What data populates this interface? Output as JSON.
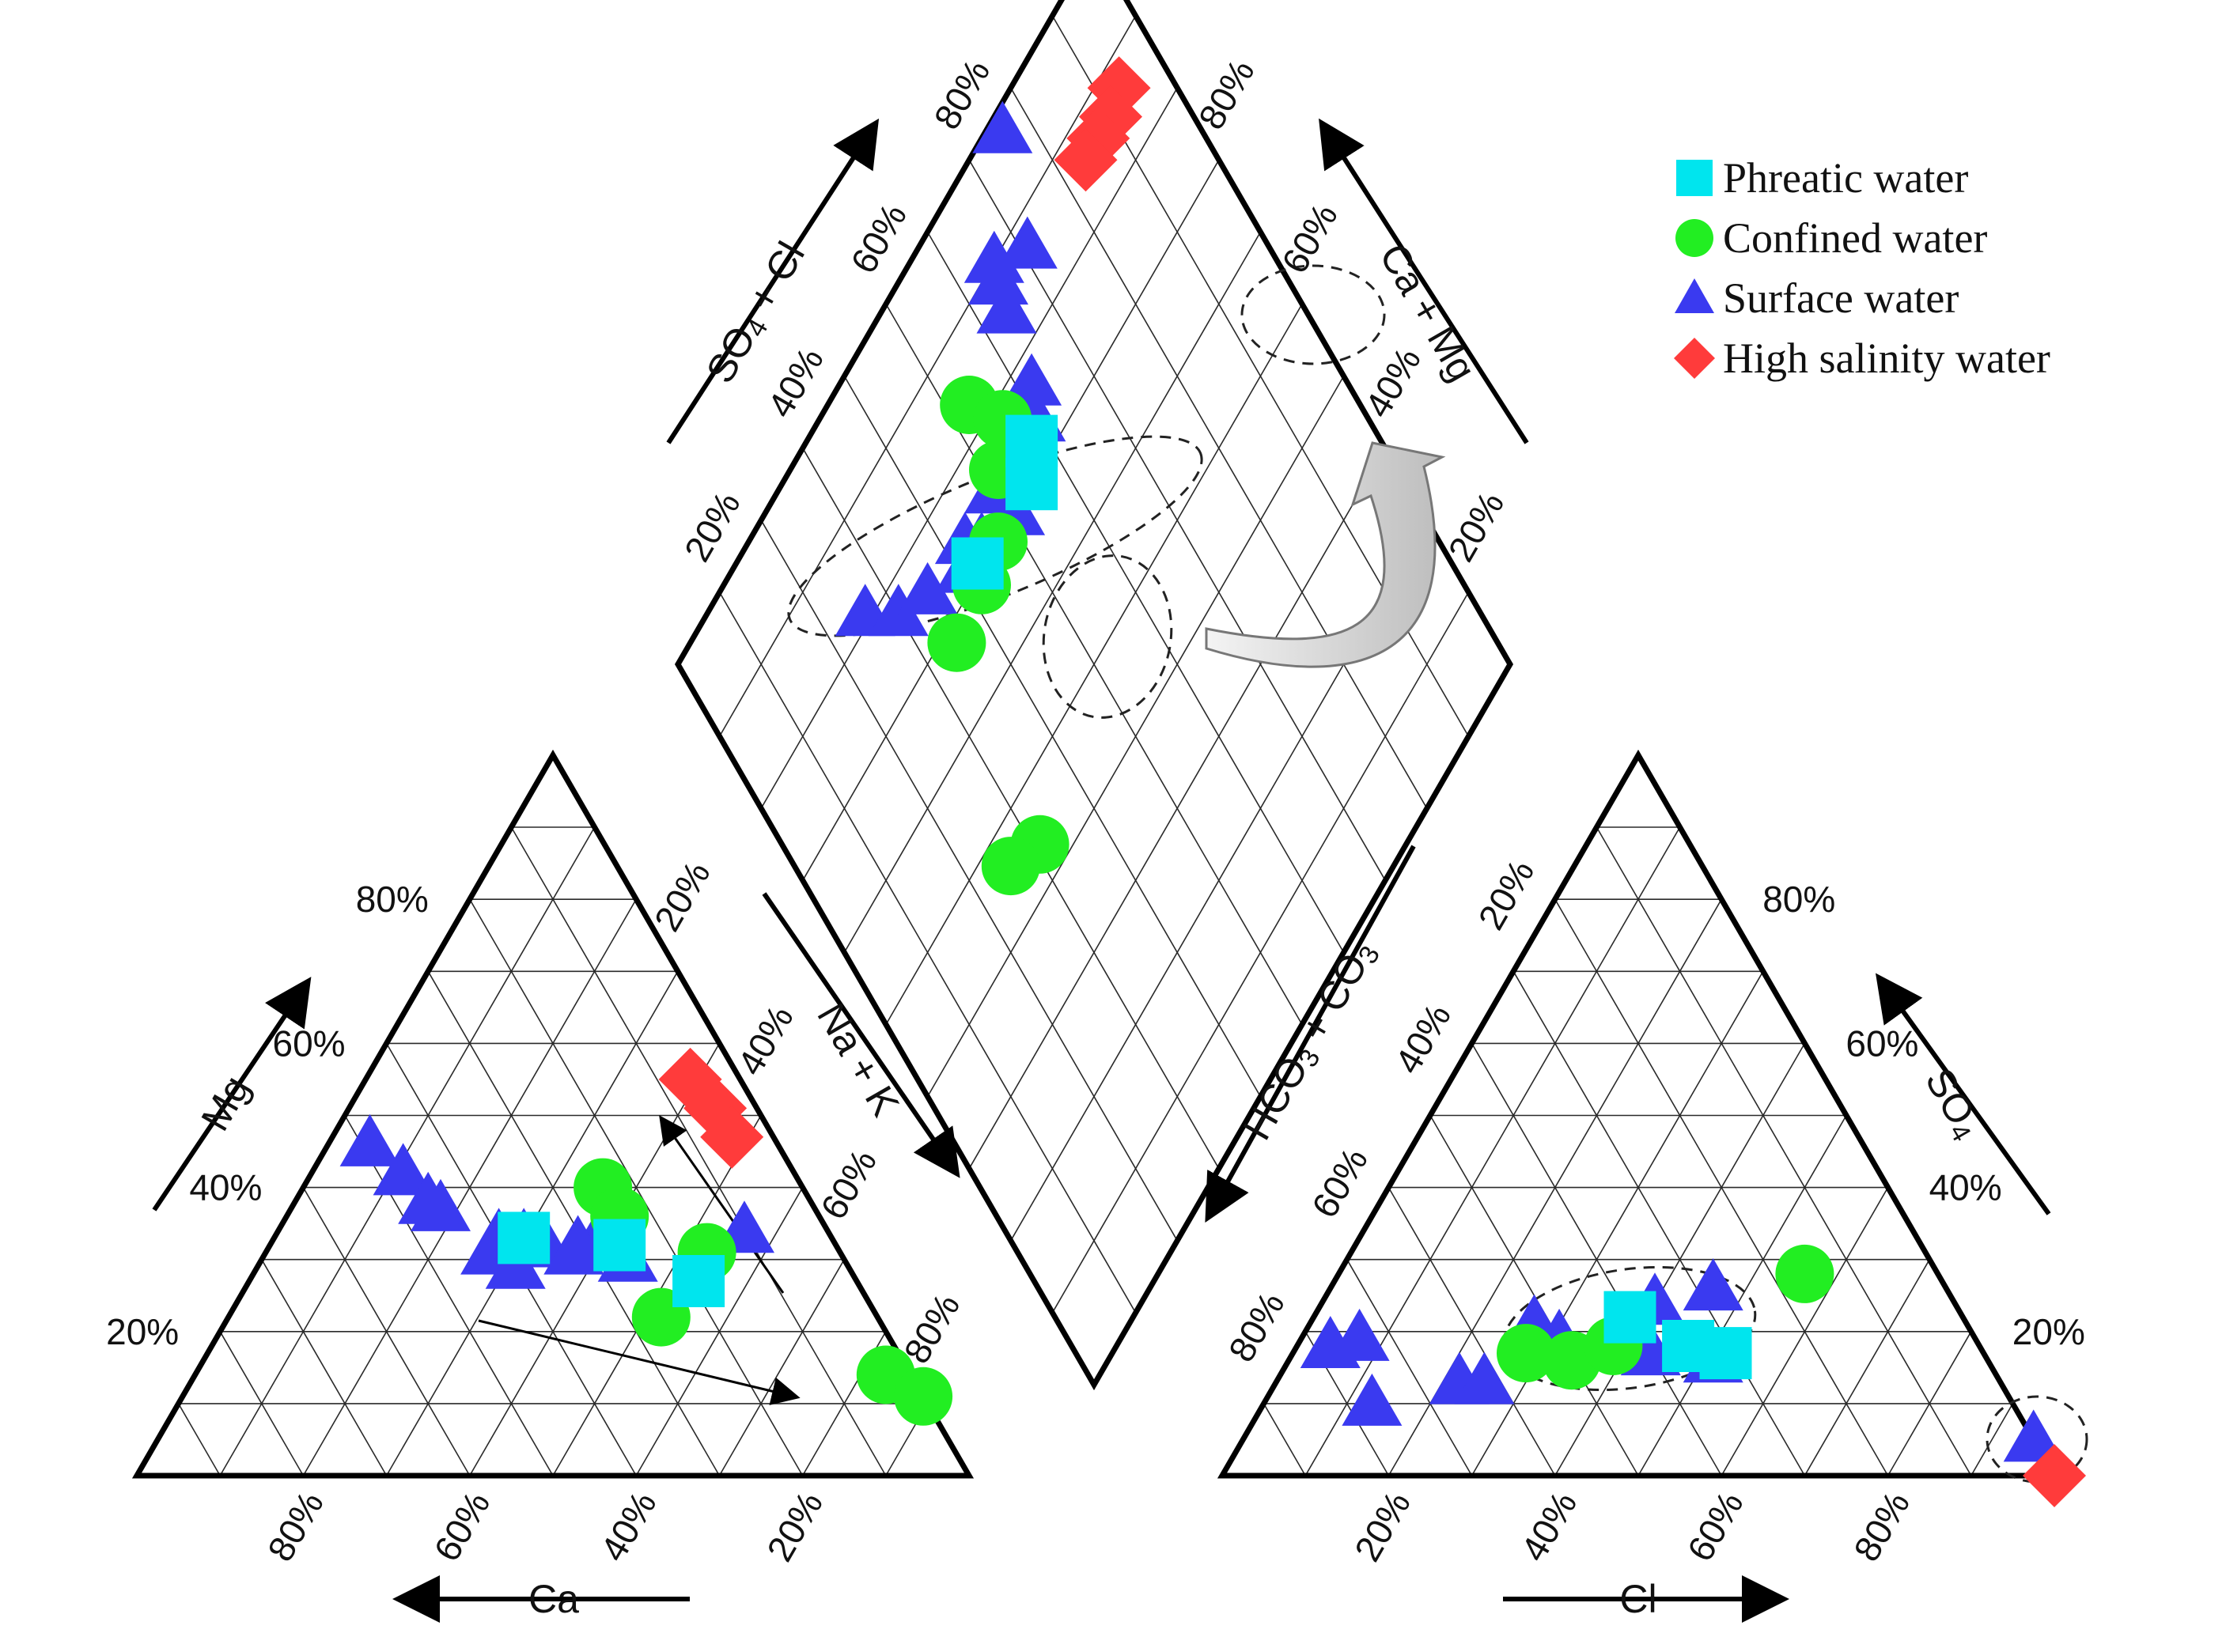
{
  "chart_data": {
    "type": "scatter",
    "subtype": "piper-trilinear",
    "title": "",
    "colors": {
      "phreatic": "#00e5ee",
      "confined": "#22ee22",
      "surface": "#3a3af0",
      "high_salinity": "#ff3b3b"
    },
    "legend": {
      "placement": "top-right",
      "entries": [
        {
          "key": "phreatic",
          "label": "Phreatic water",
          "marker": "square"
        },
        {
          "key": "confined",
          "label": "Confined water",
          "marker": "circle"
        },
        {
          "key": "surface",
          "label": "Surface water",
          "marker": "triangle"
        },
        {
          "key": "high_salinity",
          "label": "High salinity water",
          "marker": "diamond"
        }
      ]
    },
    "tick_labels": [
      "20%",
      "40%",
      "60%",
      "80%"
    ],
    "axes": {
      "ca": {
        "label": "Ca"
      },
      "mg": {
        "label": "Mg"
      },
      "cl": {
        "label": "Cl"
      },
      "so4": {
        "label": "SO",
        "sub": "4"
      },
      "nak": {
        "label": "Na + K"
      },
      "hco3co3": {
        "parts": [
          "HCO",
          "3",
          " + CO",
          "3"
        ]
      },
      "so4cl": {
        "parts": [
          "SO",
          "4",
          " + Cl"
        ]
      },
      "camg": {
        "label": "Ca + Mg"
      }
    },
    "cation_triangle": {
      "coords": "Ca %, Mg %, Na+K %",
      "series": [
        {
          "key": "surface",
          "points": [
            [
              49,
              46,
              5
            ],
            [
              47,
              42,
              11
            ],
            [
              46,
              38,
              16
            ],
            [
              45,
              37,
              18
            ],
            [
              27,
              34,
              39
            ],
            [
              42,
              31,
              27
            ],
            [
              40,
              29,
              31
            ],
            [
              40,
              33,
              27
            ],
            [
              37,
              33,
              30
            ],
            [
              35,
              32,
              33
            ],
            [
              32,
              31,
              37
            ],
            [
              31,
              32,
              37
            ],
            [
              26,
              30,
              44
            ],
            [
              10,
              34,
              56
            ]
          ]
        },
        {
          "key": "confined",
          "points": [
            [
              24,
              40,
              36
            ],
            [
              24,
              36,
              40
            ],
            [
              16,
              31,
              53
            ],
            [
              26,
              22,
              52
            ],
            [
              3,
              14,
              83
            ],
            [
              0,
              11,
              89
            ]
          ]
        },
        {
          "key": "phreatic",
          "points": [
            [
              37,
              33,
              30
            ],
            [
              26,
              32,
              42
            ],
            [
              19,
              27,
              54
            ]
          ]
        },
        {
          "key": "high_salinity",
          "points": [
            [
              6,
              55,
              39
            ],
            [
              5,
              51,
              44
            ],
            [
              5,
              47,
              48
            ]
          ]
        }
      ]
    },
    "anion_triangle": {
      "coords": "HCO3+CO3 %, SO4 %, Cl %",
      "series": [
        {
          "key": "surface",
          "points": [
            [
              78,
              18,
              4
            ],
            [
              74,
              19,
              7
            ],
            [
              77,
              10,
              13
            ],
            [
              65,
              13,
              22
            ],
            [
              62,
              13,
              25
            ],
            [
              52,
              21,
              27
            ],
            [
              50,
              19,
              31
            ],
            [
              41,
              19,
              40
            ],
            [
              40,
              17,
              43
            ],
            [
              36,
              24,
              40
            ],
            [
              33,
              16,
              51
            ],
            [
              28,
              26,
              46
            ],
            [
              0,
              5,
              95
            ]
          ]
        },
        {
          "key": "confined",
          "points": [
            [
              55,
              17,
              28
            ],
            [
              50,
              16,
              34
            ],
            [
              44,
              18,
              38
            ],
            [
              16,
              28,
              56
            ]
          ]
        },
        {
          "key": "phreatic",
          "points": [
            [
              40,
              22,
              38
            ],
            [
              35,
              18,
              47
            ],
            [
              31,
              17,
              52
            ]
          ]
        },
        {
          "key": "high_salinity",
          "points": [
            [
              0,
              0,
              100
            ]
          ]
        }
      ]
    },
    "diamond": {
      "coords": "SO4+Cl %, Ca+Mg %",
      "series": [
        {
          "key": "surface",
          "points": [
            [
              26,
              81
            ],
            [
              30,
              77
            ],
            [
              35,
              75
            ],
            [
              41,
              72
            ],
            [
              43,
              74
            ],
            [
              45,
              72
            ],
            [
              51,
              70
            ],
            [
              50,
              74
            ],
            [
              55,
              71
            ],
            [
              60,
              74
            ],
            [
              62,
              77
            ],
            [
              71,
              87
            ],
            [
              64,
              85
            ],
            [
              65,
              88
            ],
            [
              66,
              90
            ],
            [
              76,
              98
            ]
          ]
        },
        {
          "key": "confined",
          "points": [
            [
              53,
              83
            ],
            [
              56,
              78
            ],
            [
              52,
              75
            ],
            [
              47,
              70
            ],
            [
              42,
              69
            ],
            [
              35,
              68
            ],
            [
              31,
              44
            ],
            [
              26,
              46
            ]
          ]
        },
        {
          "key": "phreatic",
          "points": [
            [
              55,
              70
            ],
            [
              58,
              73
            ],
            [
              43,
              71
            ]
          ]
        },
        {
          "key": "high_salinity",
          "points": [
            [
              93,
              87
            ],
            [
              90,
              86
            ],
            [
              87,
              86
            ],
            [
              84,
              86
            ]
          ]
        }
      ]
    }
  }
}
